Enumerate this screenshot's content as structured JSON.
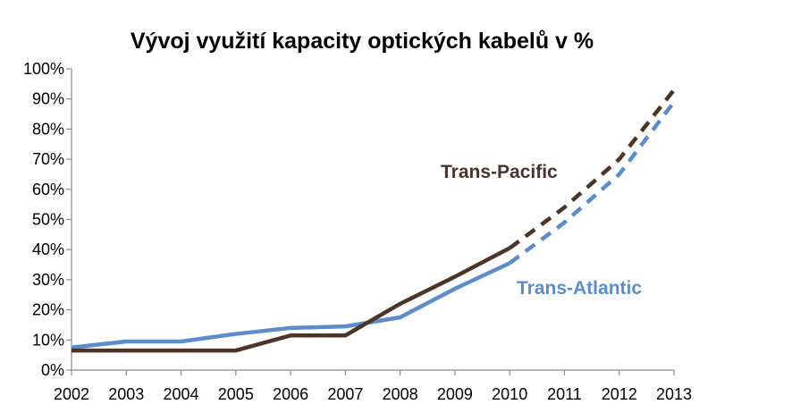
{
  "chart_data": {
    "type": "line",
    "title": "Vývoj využití kapacity optických kabelů v %",
    "xlabel": "",
    "ylabel": "",
    "x": [
      "2002",
      "2003",
      "2004",
      "2005",
      "2006",
      "2007",
      "2008",
      "2009",
      "2010",
      "2011",
      "2012",
      "2013"
    ],
    "ylim": [
      0,
      100
    ],
    "yticks": [
      "0%",
      "10%",
      "20%",
      "30%",
      "40%",
      "50%",
      "60%",
      "70%",
      "80%",
      "90%",
      "100%"
    ],
    "grid": false,
    "legend": "inline labels",
    "forecast_from": "2010",
    "series": [
      {
        "name": "Trans-Pacific",
        "color": "#4d3426",
        "values": [
          6.5,
          6.5,
          6.5,
          6.5,
          11.5,
          11.5,
          22,
          31,
          40.5,
          54,
          70,
          93
        ]
      },
      {
        "name": "Trans-Atlantic",
        "color": "#5b8ccc",
        "values": [
          7.5,
          9.5,
          9.5,
          12,
          14,
          14.5,
          17.5,
          27,
          35.5,
          49,
          65,
          89
        ]
      }
    ]
  }
}
